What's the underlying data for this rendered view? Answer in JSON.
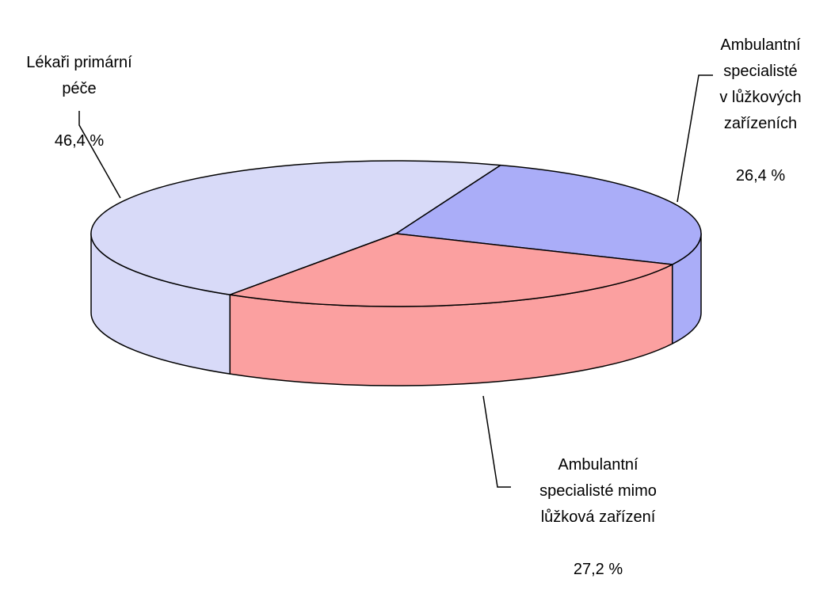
{
  "chart_data": {
    "type": "pie3d",
    "categories": [
      "Lékaři primární\npéče",
      "Ambulantní\nspecialisté\nv lůžkových\nzařízeních",
      "Ambulantní\nspecialisté mimo\nlůžková zařízení"
    ],
    "values": [
      46.4,
      26.4,
      27.2
    ],
    "value_labels": [
      "46,4 %",
      "26,4 %",
      "27,2 %"
    ],
    "colors": [
      "#d8daf8",
      "#aaadf8",
      "#fba0a0"
    ]
  }
}
